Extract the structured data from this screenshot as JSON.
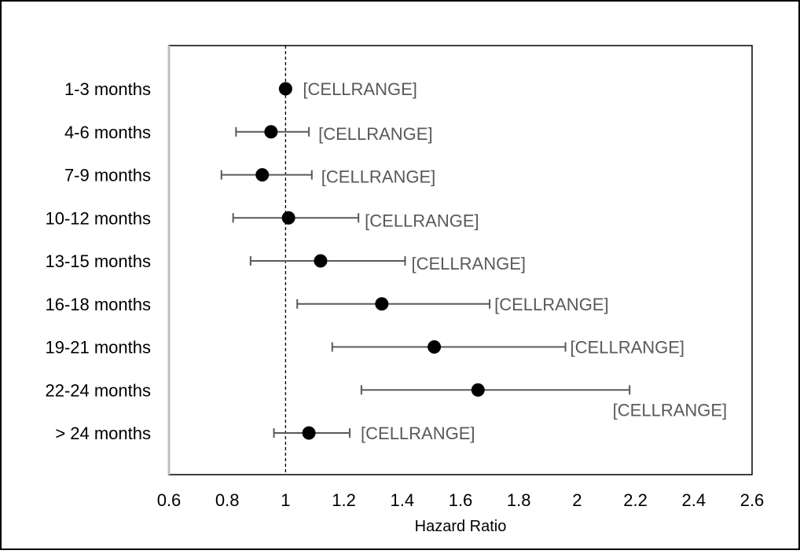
{
  "chart_data": {
    "type": "scatter",
    "subtype": "forest-plot",
    "title": "",
    "xlabel": "Hazard Ratio",
    "ylabel": "",
    "xlim": [
      0.6,
      2.6
    ],
    "xticks": [
      0.6,
      0.8,
      1,
      1.2,
      1.4,
      1.6,
      1.8,
      2,
      2.2,
      2.4,
      2.6
    ],
    "xtick_labels": [
      "0.6",
      "0.8",
      "1",
      "1.2",
      "1.4",
      "1.6",
      "1.8",
      "2",
      "2.2",
      "2.4",
      "2.6"
    ],
    "reference_line": 1,
    "grid": false,
    "legend": "none",
    "colors": {
      "point": "#000000",
      "error_bar": "#595959",
      "data_label": "#595959",
      "text": "#000000",
      "frame": "#000000",
      "left_axis": "#bfbfbf"
    },
    "categories": [
      "1-3 months",
      "4-6 months",
      "7-9 months",
      "10-12 months",
      "13-15 months",
      "16-18 months",
      "19-21 months",
      "22-24 months",
      "> 24 months"
    ],
    "series": [
      {
        "values": [
          1.0,
          0.95,
          0.92,
          1.01,
          1.12,
          1.33,
          1.51,
          1.66,
          1.08
        ],
        "lower": [
          1.0,
          0.83,
          0.78,
          0.82,
          0.88,
          1.04,
          1.16,
          1.26,
          0.96
        ],
        "upper": [
          1.0,
          1.08,
          1.09,
          1.25,
          1.41,
          1.7,
          1.96,
          2.18,
          1.22
        ],
        "data_labels": [
          "[CELLRANGE]",
          "[CELLRANGE]",
          "[CELLRANGE]",
          "[CELLRANGE]",
          "[CELLRANGE]",
          "[CELLRANGE]",
          "[CELLRANGE]",
          "[CELLRANGE]",
          "[CELLRANGE]"
        ]
      }
    ]
  }
}
